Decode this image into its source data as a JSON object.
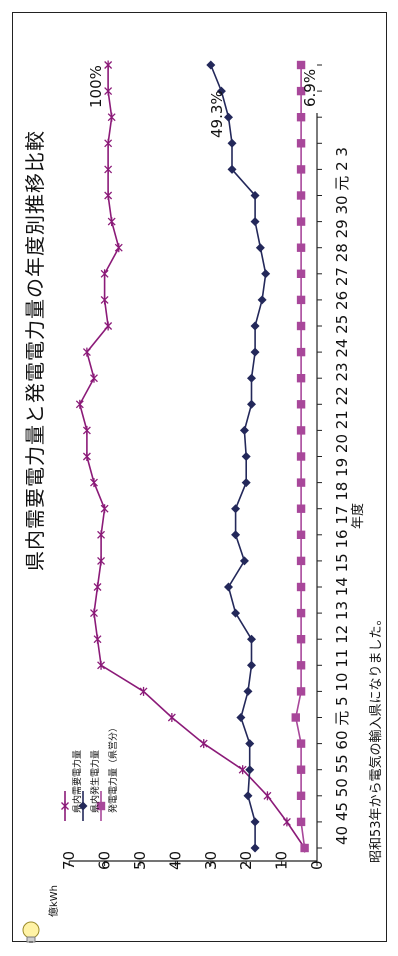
{
  "chart_data": {
    "type": "line",
    "title": "県内需要電力量と発電電力量の年度別推移比較",
    "unit_label": "億kWh",
    "xlabel": "年度",
    "ylim": [
      0,
      70
    ],
    "yticks": [
      "0",
      "10",
      "20",
      "30",
      "40",
      "50",
      "60",
      "70"
    ],
    "categories": [
      "40",
      "45",
      "50",
      "55",
      "60",
      "元",
      "5",
      "10",
      "11",
      "12",
      "13",
      "14",
      "15",
      "16",
      "17",
      "18",
      "19",
      "20",
      "21",
      "22",
      "23",
      "24",
      "25",
      "26",
      "27",
      "28",
      "29",
      "30",
      "元",
      "2",
      "3"
    ],
    "category_axis_label": "40 45 50 55 60 元 5 10 11 12 13 14 15 16 17 18 19 20 21 22 23 24 25 26 27 28 29 30 元 2 3",
    "series": [
      {
        "name": "県内需要電力量",
        "marker": "star",
        "color": "#8b1a78",
        "values": [
          3.5,
          8.5,
          14,
          21,
          32,
          41,
          49,
          61,
          62,
          63,
          62,
          61,
          61,
          60,
          63,
          65,
          65,
          67,
          63,
          65,
          59,
          60,
          60,
          56,
          58,
          59,
          59,
          59,
          58,
          59,
          59
        ]
      },
      {
        "name": "県内発生電力量",
        "marker": "diamond",
        "color": "#23285a",
        "values": [
          17.5,
          17.5,
          19.5,
          19,
          19,
          21.5,
          19.5,
          18.5,
          18.5,
          23,
          25,
          20.5,
          23,
          23,
          20,
          20,
          20.5,
          18.5,
          18.5,
          17.5,
          17.5,
          15.5,
          14.5,
          16,
          17.5,
          17.5,
          24,
          24,
          25,
          27,
          30
        ]
      },
      {
        "name": "発電電力量（県営分）",
        "marker": "square",
        "color": "#a8479a",
        "values": [
          3.5,
          4.5,
          4.5,
          4.5,
          4.5,
          6,
          4.5,
          4.5,
          4.5,
          4.5,
          4.5,
          4.5,
          4.5,
          4.5,
          4.5,
          4.5,
          4.5,
          4.5,
          4.5,
          4.5,
          4.5,
          4.5,
          4.5,
          4.5,
          4.5,
          4.5,
          4.5,
          4.5,
          4.5,
          4.5,
          4.5
        ]
      }
    ],
    "end_labels": [
      "100%",
      "49.3%",
      "6.9%"
    ],
    "note": "昭和53年から電気の輸入県になりました。",
    "legend_position": "top-left",
    "grid": false
  }
}
